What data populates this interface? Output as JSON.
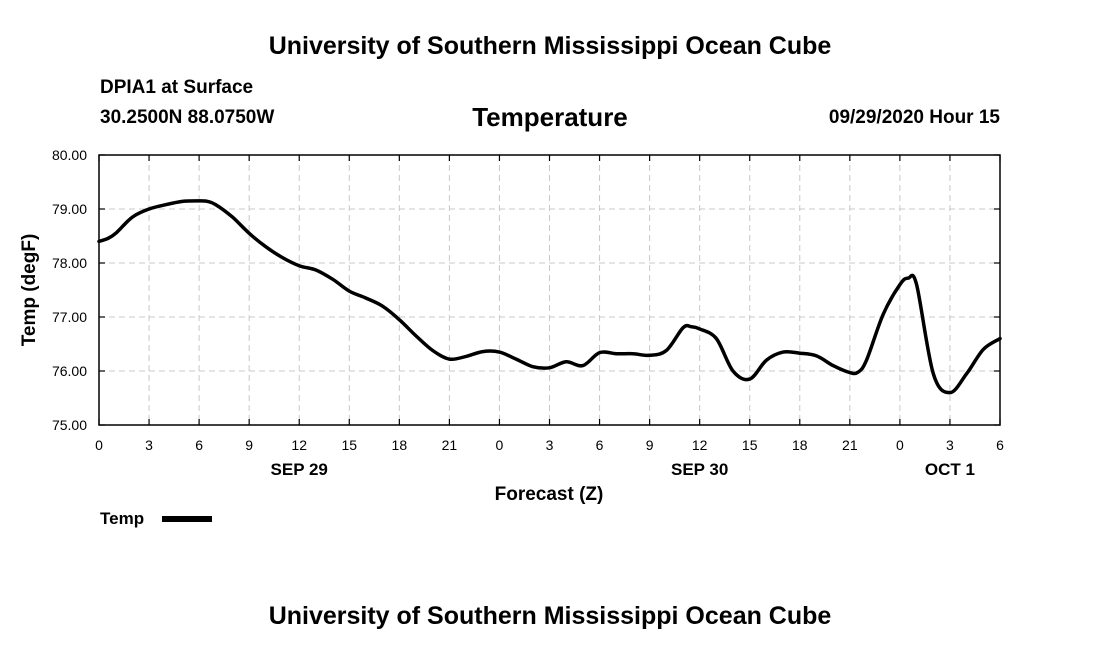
{
  "page": {
    "top_title": "University of Southern Mississippi Ocean Cube",
    "bottom_title": "University of Southern Mississippi Ocean Cube",
    "station": "DPIA1 at Surface",
    "coords": "30.2500N 88.0750W",
    "run": "09/29/2020 Hour 15"
  },
  "legend": {
    "label": "Temp"
  },
  "colors": {
    "line": "#000000",
    "grid": "#c8c8c8",
    "background": "#ffffff"
  },
  "chart_data": {
    "type": "line",
    "title": "Temperature",
    "xlabel": "Forecast (Z)",
    "ylabel": "Temp (degF)",
    "xlim": [
      0,
      54
    ],
    "ylim": [
      75.0,
      80.0
    ],
    "grid": true,
    "legend_position": "bottom-left",
    "x_ticks": [
      {
        "hour": 0,
        "label": "0"
      },
      {
        "hour": 3,
        "label": "3"
      },
      {
        "hour": 6,
        "label": "6"
      },
      {
        "hour": 9,
        "label": "9"
      },
      {
        "hour": 12,
        "label": "12"
      },
      {
        "hour": 15,
        "label": "15"
      },
      {
        "hour": 18,
        "label": "18"
      },
      {
        "hour": 21,
        "label": "21"
      },
      {
        "hour": 24,
        "label": "0"
      },
      {
        "hour": 27,
        "label": "3"
      },
      {
        "hour": 30,
        "label": "6"
      },
      {
        "hour": 33,
        "label": "9"
      },
      {
        "hour": 36,
        "label": "12"
      },
      {
        "hour": 39,
        "label": "15"
      },
      {
        "hour": 42,
        "label": "18"
      },
      {
        "hour": 45,
        "label": "21"
      },
      {
        "hour": 48,
        "label": "0"
      },
      {
        "hour": 51,
        "label": "3"
      },
      {
        "hour": 54,
        "label": "6"
      }
    ],
    "date_labels": [
      {
        "hour": 12,
        "label": "SEP 29"
      },
      {
        "hour": 36,
        "label": "SEP 30"
      },
      {
        "hour": 51,
        "label": "OCT 1"
      }
    ],
    "y_ticks": [
      {
        "value": 75,
        "label": "75.00"
      },
      {
        "value": 76,
        "label": "76.00"
      },
      {
        "value": 77,
        "label": "77.00"
      },
      {
        "value": 78,
        "label": "78.00"
      },
      {
        "value": 79,
        "label": "79.00"
      },
      {
        "value": 80,
        "label": "80.00"
      }
    ],
    "series": [
      {
        "name": "Temp",
        "x": [
          0,
          0.5,
          1,
          2,
          3,
          4,
          5,
          6,
          6.5,
          7,
          8,
          9,
          10,
          11,
          12,
          13,
          14,
          15,
          16,
          17,
          18,
          19,
          20,
          21,
          22,
          23,
          24,
          25,
          26,
          27,
          28,
          29,
          30,
          31,
          32,
          33,
          34,
          35,
          35.5,
          36,
          37,
          38,
          39,
          40,
          41,
          42,
          43,
          44,
          45,
          45.5,
          46,
          47,
          48,
          48.5,
          49,
          50,
          51,
          52,
          53,
          54
        ],
        "values": [
          78.4,
          78.45,
          78.55,
          78.85,
          79.0,
          79.08,
          79.14,
          79.15,
          79.14,
          79.08,
          78.85,
          78.55,
          78.3,
          78.1,
          77.95,
          77.87,
          77.7,
          77.48,
          77.35,
          77.2,
          76.95,
          76.65,
          76.38,
          76.22,
          76.27,
          76.36,
          76.35,
          76.22,
          76.08,
          76.06,
          76.17,
          76.1,
          76.34,
          76.32,
          76.32,
          76.29,
          76.38,
          76.8,
          76.82,
          76.78,
          76.6,
          76.0,
          75.85,
          76.2,
          76.35,
          76.33,
          76.28,
          76.1,
          75.97,
          75.98,
          76.2,
          77.05,
          77.6,
          77.72,
          77.6,
          75.95,
          75.6,
          75.95,
          76.4,
          76.6
        ]
      }
    ]
  }
}
